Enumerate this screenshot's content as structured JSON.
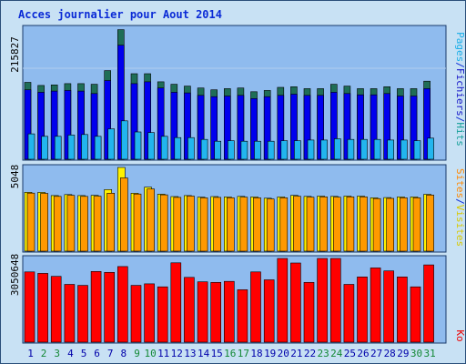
{
  "title": "Acces journalier pour Aout 2014",
  "colors": {
    "background": "#c8e1f4",
    "panel": "#8fbbee",
    "title": "#0b2bd6",
    "hits": "#1f6e57",
    "hits_label": "#16a09a",
    "files": "#0000ee",
    "files_label": "#1414c8",
    "pages": "#22b5ee",
    "pages_label": "#1aaee8",
    "visits": "#fff200",
    "visits_label": "#d8c900",
    "sites": "#ff9900",
    "sites_label": "#ff8800",
    "kbytes": "#ff0000",
    "kbytes_label": "#ee0000",
    "weekday_label": "#0000aa",
    "weekend_label": "#118833"
  },
  "chart_data": [
    {
      "type": "bar",
      "name": "hits-files-pages",
      "ymax_label": "215827",
      "ylim": [
        0,
        215827
      ],
      "categories": [
        "1",
        "2",
        "3",
        "4",
        "5",
        "6",
        "7",
        "8",
        "9",
        "10",
        "11",
        "12",
        "13",
        "14",
        "15",
        "16",
        "17",
        "18",
        "19",
        "20",
        "21",
        "22",
        "23",
        "24",
        "25",
        "26",
        "27",
        "28",
        "29",
        "30",
        "31"
      ],
      "weekend_days": [
        "2",
        "3",
        "9",
        "10",
        "16",
        "17",
        "23",
        "24",
        "30",
        "31"
      ],
      "legend": [
        {
          "text": "Pages",
          "color_key": "pages_label"
        },
        {
          "text": "/",
          "color_key": "title"
        },
        {
          "text": "Fichiers",
          "color_key": "files_label"
        },
        {
          "text": "/",
          "color_key": "title"
        },
        {
          "text": "Hits",
          "color_key": "hits_label"
        }
      ],
      "series": [
        {
          "name": "Hits",
          "values": [
            124000,
            119000,
            120000,
            122000,
            122000,
            121000,
            143000,
            209000,
            138000,
            138000,
            125000,
            121000,
            118000,
            115000,
            112000,
            114000,
            115000,
            109000,
            111000,
            116000,
            117000,
            114000,
            114000,
            121000,
            118000,
            114000,
            114000,
            117000,
            114000,
            114000,
            126000
          ]
        },
        {
          "name": "Fichiers",
          "values": [
            112000,
            108000,
            110000,
            111000,
            110000,
            106000,
            127000,
            184000,
            122000,
            125000,
            115000,
            108000,
            107000,
            103000,
            101000,
            102000,
            103000,
            98000,
            101000,
            103000,
            105000,
            103000,
            103000,
            108000,
            106000,
            104000,
            104000,
            106000,
            102000,
            102000,
            114000
          ]
        },
        {
          "name": "Pages",
          "values": [
            41000,
            37000,
            37000,
            39000,
            40000,
            37000,
            49000,
            62000,
            44000,
            43000,
            37000,
            35000,
            35000,
            32000,
            29000,
            30000,
            29000,
            29000,
            29000,
            30000,
            30000,
            31000,
            31000,
            33000,
            32000,
            32000,
            32000,
            31000,
            31000,
            30000,
            34000
          ]
        }
      ]
    },
    {
      "type": "bar",
      "name": "sites-visits",
      "ymax_label": "5048",
      "ylim": [
        0,
        5048
      ],
      "legend": [
        {
          "text": "Sites",
          "color_key": "sites_label"
        },
        {
          "text": "/",
          "color_key": "title"
        },
        {
          "text": "Visites",
          "color_key": "visits_label"
        }
      ],
      "series": [
        {
          "name": "Visites",
          "values": [
            3551,
            3542,
            3351,
            3412,
            3351,
            3361,
            3714,
            5048,
            3493,
            3855,
            3442,
            3291,
            3351,
            3261,
            3291,
            3271,
            3301,
            3271,
            3191,
            3271,
            3361,
            3301,
            3321,
            3301,
            3321,
            3321,
            3221,
            3231,
            3271,
            3271,
            3432
          ]
        },
        {
          "name": "Sites",
          "values": [
            3503,
            3484,
            3303,
            3364,
            3303,
            3313,
            3495,
            4419,
            3445,
            3750,
            3394,
            3243,
            3323,
            3213,
            3243,
            3223,
            3253,
            3223,
            3143,
            3223,
            3313,
            3253,
            3273,
            3253,
            3273,
            3273,
            3173,
            3183,
            3223,
            3223,
            3384
          ]
        }
      ]
    },
    {
      "type": "bar",
      "name": "kbytes",
      "ymax_label": "3050648",
      "ylim": [
        0,
        3050648
      ],
      "legend": [
        {
          "text": "Ko",
          "color_key": "kbytes_label"
        }
      ],
      "series": [
        {
          "name": "Ko",
          "values": [
            2560000,
            2506000,
            2397000,
            2106000,
            2070000,
            2575000,
            2542000,
            2756000,
            2070000,
            2125000,
            2015000,
            2892000,
            2361000,
            2197000,
            2179000,
            2215000,
            1910000,
            2560000,
            2270000,
            3051000,
            2886000,
            2179000,
            3051000,
            3051000,
            2106000,
            2379000,
            2706000,
            2597000,
            2379000,
            2015000,
            2815000
          ]
        }
      ]
    }
  ]
}
